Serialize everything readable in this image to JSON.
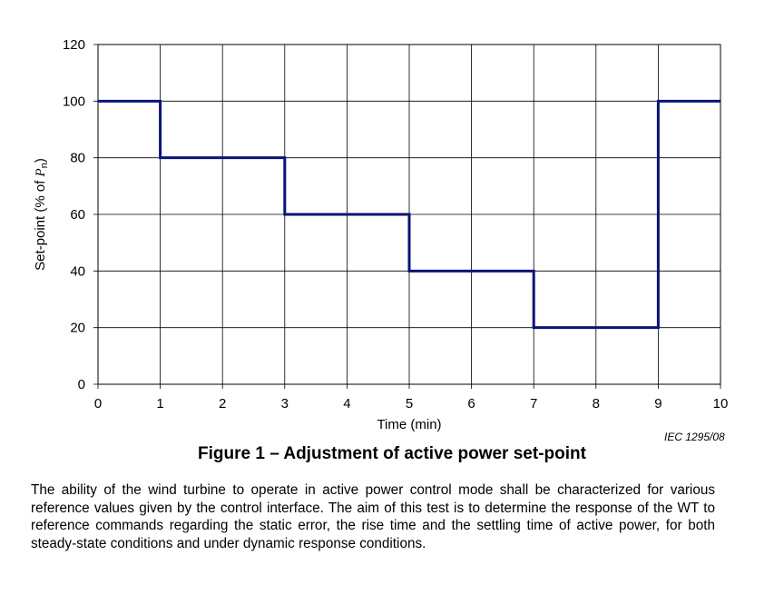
{
  "chart_data": {
    "type": "line",
    "step": true,
    "xlabel": "Time   (min)",
    "ylabel": {
      "main": "Set-point   (% of ",
      "var": "P",
      "sub": "n",
      "close": ")"
    },
    "xlim": [
      0,
      10
    ],
    "ylim": [
      0,
      120
    ],
    "xticks": [
      0,
      1,
      2,
      3,
      4,
      5,
      6,
      7,
      8,
      9,
      10
    ],
    "yticks": [
      0,
      20,
      40,
      60,
      80,
      100,
      120
    ],
    "grid": true,
    "series": [
      {
        "color": "#0a1478",
        "x": [
          0,
          1,
          1,
          3,
          3,
          5,
          5,
          7,
          7,
          9,
          9,
          10
        ],
        "y": [
          100,
          100,
          80,
          80,
          60,
          60,
          40,
          40,
          20,
          20,
          100,
          100
        ]
      }
    ]
  },
  "source_note": "IEC   1295/08",
  "caption": "Figure 1 – Adjustment of active power set-point",
  "paragraph": "The ability of the wind turbine to operate in active power control mode shall be characterized for various reference values given by the control interface. The aim of this test is to determine the response of the WT to reference commands regarding the static error, the rise time and the settling time of active power, for both steady-state conditions and under dynamic response conditions."
}
